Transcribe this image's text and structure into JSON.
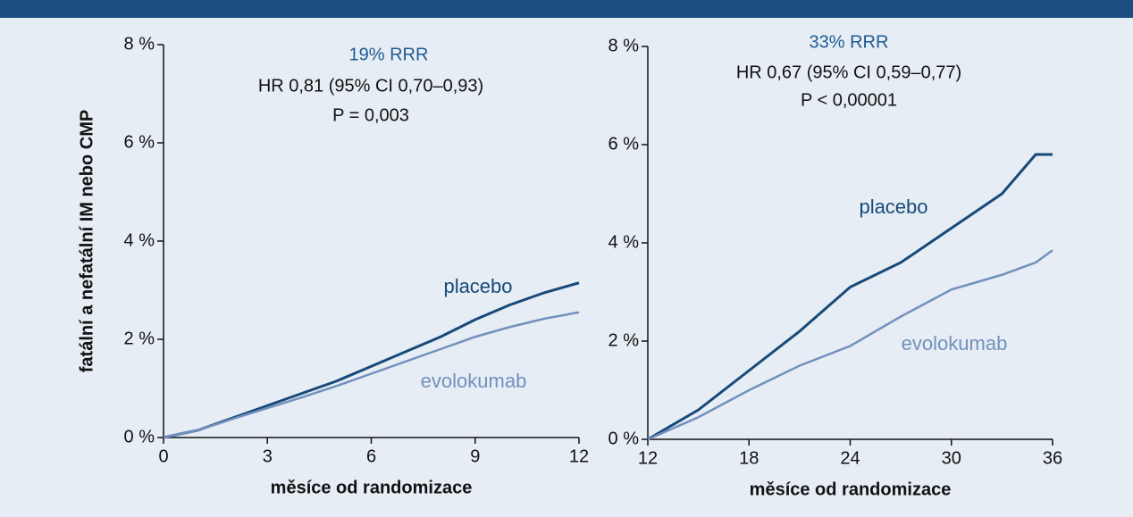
{
  "chart_data": [
    {
      "type": "line",
      "annotations": [
        "19% RRR",
        "HR 0,81 (95% CI 0,70–0,93)",
        "P = 0,003"
      ],
      "ylabel": "fatální a nefatální IM nebo CMP",
      "xlabel": "měsíce od randomizace",
      "xlim": [
        0,
        12
      ],
      "xticks": [
        0,
        3,
        6,
        9,
        12
      ],
      "ylim": [
        0,
        8
      ],
      "yticks": [
        {
          "value": 0,
          "label": "0 %"
        },
        {
          "value": 2,
          "label": "2 %"
        },
        {
          "value": 4,
          "label": "4 %"
        },
        {
          "value": 6,
          "label": "6 %"
        },
        {
          "value": 8,
          "label": "8 %"
        }
      ],
      "x": [
        0,
        1,
        2,
        3,
        4,
        5,
        6,
        7,
        8,
        9,
        10,
        11,
        12
      ],
      "series": [
        {
          "name": "placebo",
          "color": "#17497a",
          "values": [
            0,
            0.15,
            0.4,
            0.65,
            0.9,
            1.15,
            1.45,
            1.75,
            2.05,
            2.4,
            2.7,
            2.95,
            3.15
          ]
        },
        {
          "name": "evolokumab",
          "color": "#7390bd",
          "values": [
            0,
            0.15,
            0.38,
            0.6,
            0.82,
            1.05,
            1.3,
            1.55,
            1.8,
            2.05,
            2.25,
            2.42,
            2.55
          ]
        }
      ]
    },
    {
      "type": "line",
      "annotations": [
        "33% RRR",
        "HR 0,67 (95% CI 0,59–0,77)",
        "P < 0,00001"
      ],
      "xlabel": "měsíce od randomizace",
      "xlim": [
        12,
        36
      ],
      "xticks": [
        12,
        18,
        24,
        30,
        36
      ],
      "ylim": [
        0,
        8
      ],
      "yticks": [
        {
          "value": 0,
          "label": "0 %"
        },
        {
          "value": 2,
          "label": "2 %"
        },
        {
          "value": 4,
          "label": "4 %"
        },
        {
          "value": 6,
          "label": "6 %"
        },
        {
          "value": 8,
          "label": "8 %"
        }
      ],
      "x": [
        12,
        15,
        18,
        21,
        24,
        27,
        30,
        33,
        35,
        36
      ],
      "series": [
        {
          "name": "placebo",
          "color": "#17497a",
          "values": [
            0,
            0.6,
            1.4,
            2.2,
            3.1,
            3.6,
            4.3,
            5.0,
            5.8,
            5.8
          ]
        },
        {
          "name": "evolokumab",
          "color": "#7390bd",
          "values": [
            0,
            0.45,
            1.0,
            1.5,
            1.9,
            2.5,
            3.05,
            3.35,
            3.6,
            3.85
          ]
        }
      ]
    }
  ]
}
